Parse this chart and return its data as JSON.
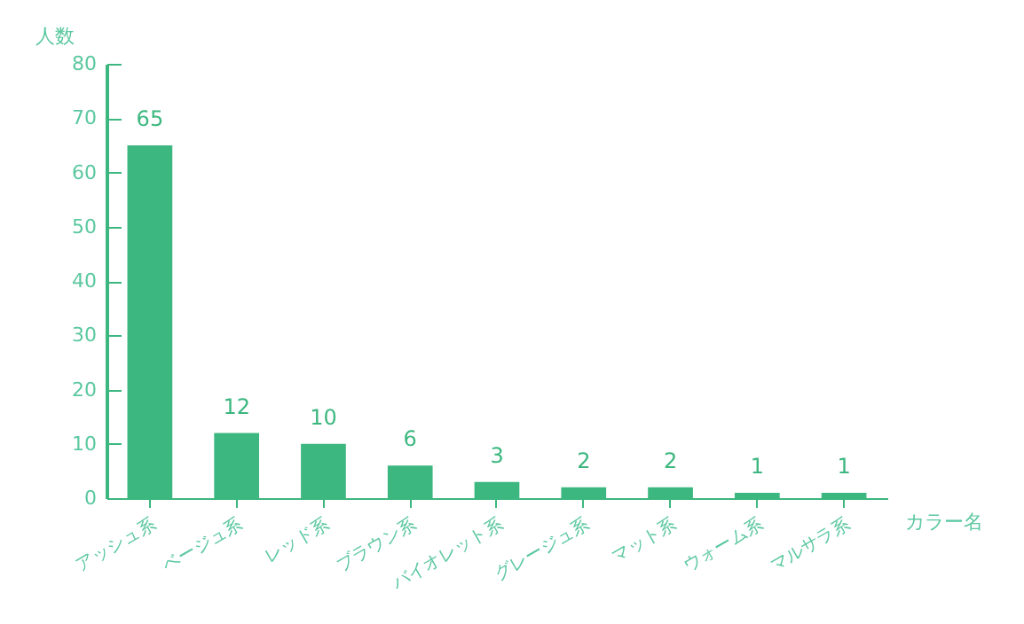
{
  "chart_data": {
    "type": "bar",
    "xlabel": "カラー名",
    "ylabel": "人数",
    "categories": [
      "アッシュ系",
      "ベージュ系",
      "レッド系",
      "ブラウン系",
      "バイオレット系",
      "グレージュ系",
      "マット系",
      "ウォーム系",
      "マルサラ系"
    ],
    "values": [
      65,
      12,
      10,
      6,
      3,
      2,
      2,
      1,
      1
    ],
    "color": "#3cb77f",
    "ylim": [
      0,
      80
    ],
    "yticks": [
      0,
      10,
      20,
      30,
      40,
      50,
      60,
      70,
      80
    ],
    "grid": false,
    "data_labels": true
  }
}
